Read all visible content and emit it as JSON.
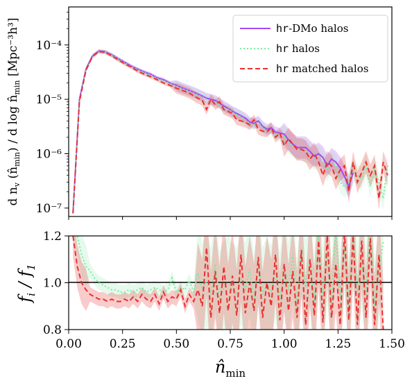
{
  "chart_data": [
    {
      "type": "line",
      "panel": "top",
      "ylabel": "d n_v (n̂_min) / d log n̂_min  [Mpc⁻³h³]",
      "xlabel": "",
      "yscale": "log",
      "ylim": [
        7e-08,
        0.0005
      ],
      "xlim": [
        0.0,
        1.5
      ],
      "yticks": [
        1e-07,
        1e-06,
        1e-05,
        0.0001
      ],
      "ytick_labels": [
        "10⁻⁷",
        "10⁻⁶",
        "10⁻⁵",
        "10⁻⁴"
      ],
      "legend": {
        "placement": "top-right",
        "entries": [
          "hr-DMo halos",
          "hr halos",
          "hr matched halos"
        ]
      },
      "x": [
        0.02,
        0.05,
        0.08,
        0.11,
        0.14,
        0.17,
        0.2,
        0.23,
        0.26,
        0.29,
        0.32,
        0.35,
        0.38,
        0.41,
        0.44,
        0.47,
        0.5,
        0.53,
        0.56,
        0.59,
        0.62,
        0.64,
        0.66,
        0.68,
        0.7,
        0.72,
        0.74,
        0.76,
        0.78,
        0.8,
        0.82,
        0.84,
        0.86,
        0.88,
        0.9,
        0.92,
        0.94,
        0.96,
        0.98,
        1.0,
        1.02,
        1.04,
        1.06,
        1.08,
        1.1,
        1.12,
        1.14,
        1.16,
        1.18,
        1.2,
        1.22,
        1.24,
        1.26,
        1.28,
        1.3,
        1.32,
        1.34,
        1.36,
        1.38,
        1.4,
        1.42,
        1.44,
        1.46,
        1.48
      ],
      "series": [
        {
          "name": "hr-DMo halos",
          "color": "#a349f5",
          "style": "solid",
          "values": [
            8e-08,
            1e-05,
            3.6e-05,
            6.3e-05,
            7.7e-05,
            7.5e-05,
            6.6e-05,
            5.6e-05,
            4.8e-05,
            4.1e-05,
            3.6e-05,
            3.2e-05,
            2.9e-05,
            2.5e-05,
            2.3e-05,
            2e-05,
            1.8e-05,
            1.6e-05,
            1.45e-05,
            1.3e-05,
            1.15e-05,
            1.05e-05,
            1e-05,
            9.5e-06,
            8.5e-06,
            7.5e-06,
            6.8e-06,
            6e-06,
            5.5e-06,
            5e-06,
            4.5e-06,
            3.8e-06,
            3.6e-06,
            4e-06,
            3.2e-06,
            2.8e-06,
            3e-06,
            2.5e-06,
            2.4e-06,
            2.3e-06,
            1.8e-06,
            1.5e-06,
            1.3e-06,
            1.3e-06,
            1.3e-06,
            1.1e-06,
            9e-07,
            1e-06,
            8.5e-07,
            6e-07,
            8e-07,
            7e-07,
            5.5e-07,
            3.8e-07,
            2.5e-07,
            4.5e-07,
            null,
            null,
            null,
            null,
            null,
            null,
            null,
            null
          ]
        },
        {
          "name": "hr halos",
          "color": "#7ee8a2",
          "style": "dotted",
          "values": [
            8e-08,
            9.5e-06,
            3.4e-05,
            6.2e-05,
            7.5e-05,
            7.4e-05,
            6.5e-05,
            5.5e-05,
            4.7e-05,
            4e-05,
            3.5e-05,
            3.1e-05,
            2.8e-05,
            2.4e-05,
            2.2e-05,
            1.95e-05,
            1.75e-05,
            1.55e-05,
            1.4e-05,
            1.25e-05,
            1.1e-05,
            1e-05,
            9.5e-06,
            9e-06,
            8e-06,
            7e-06,
            6.5e-06,
            5.8e-06,
            5.2e-06,
            4.8e-06,
            4.2e-06,
            3.6e-06,
            3.4e-06,
            3.8e-06,
            3e-06,
            2.6e-06,
            2.8e-06,
            2.2e-06,
            2.2e-06,
            2.1e-06,
            1.6e-06,
            1.4e-06,
            1.2e-06,
            1.2e-06,
            1.1e-06,
            1e-06,
            8e-07,
            9e-07,
            7e-07,
            5e-07,
            7e-07,
            6e-07,
            3e-07,
            2.5e-07,
            3e-07,
            5e-07,
            4e-07,
            3.5e-07,
            6e-07,
            2.5e-07,
            5e-07,
            3e-07,
            1.5e-07,
            6e-07
          ]
        },
        {
          "name": "hr matched halos",
          "color": "#e8312f",
          "style": "dashed",
          "values": [
            8e-08,
            9e-06,
            3.4e-05,
            6.1e-05,
            7.6e-05,
            7.3e-05,
            6.3e-05,
            5.3e-05,
            4.5e-05,
            3.9e-05,
            3.3e-05,
            2.9e-05,
            2.6e-05,
            2.3e-05,
            2e-05,
            1.8e-05,
            1.6e-05,
            1.45e-05,
            1.3e-05,
            1.1e-05,
            9.5e-06,
            6.5e-06,
            1e-05,
            8e-06,
            9e-06,
            6.5e-06,
            6e-06,
            5.5e-06,
            4.2e-06,
            4e-06,
            3.8e-06,
            3.4e-06,
            4.2e-06,
            2.8e-06,
            2.6e-06,
            2.5e-06,
            3e-06,
            2e-06,
            2.4e-06,
            1.4e-06,
            1.9e-06,
            1.5e-06,
            1.2e-06,
            1.2e-06,
            1.1e-06,
            8e-07,
            1e-06,
            7e-07,
            4e-07,
            7e-07,
            6e-07,
            3.5e-07,
            5e-07,
            6e-07,
            2e-07,
            7e-07,
            3e-07,
            4.5e-07,
            7e-07,
            4e-07,
            6e-07,
            1.5e-07,
            7e-07,
            4e-07
          ]
        }
      ]
    },
    {
      "type": "line",
      "panel": "bottom",
      "ylabel": "f_i / f_1",
      "xlabel": "n̂_min",
      "ylim": [
        0.8,
        1.2
      ],
      "xlim": [
        0.0,
        1.5
      ],
      "yticks": [
        0.8,
        1.0,
        1.2
      ],
      "ytick_labels": [
        "0.8",
        "1.0",
        "1.2"
      ],
      "xticks": [
        0.0,
        0.25,
        0.5,
        0.75,
        1.0,
        1.25,
        1.5
      ],
      "xtick_labels": [
        "0.00",
        "0.25",
        "0.50",
        "0.75",
        "1.00",
        "1.25",
        "1.50"
      ],
      "reference_line": 1.0,
      "x": [
        0.02,
        0.04,
        0.06,
        0.08,
        0.1,
        0.12,
        0.14,
        0.16,
        0.18,
        0.2,
        0.22,
        0.24,
        0.26,
        0.28,
        0.3,
        0.32,
        0.34,
        0.36,
        0.38,
        0.4,
        0.42,
        0.44,
        0.46,
        0.48,
        0.5,
        0.52,
        0.54,
        0.56,
        0.58,
        0.6,
        0.62,
        0.64,
        0.66,
        0.68,
        0.7,
        0.72,
        0.74,
        0.76,
        0.78,
        0.8,
        0.82,
        0.84,
        0.86,
        0.88,
        0.9,
        0.92,
        0.94,
        0.96,
        0.98,
        1.0,
        1.02,
        1.04,
        1.06,
        1.08,
        1.1,
        1.12,
        1.14,
        1.16,
        1.18,
        1.2,
        1.22,
        1.24,
        1.26,
        1.28,
        1.3,
        1.32,
        1.34,
        1.36,
        1.38,
        1.4,
        1.42,
        1.44,
        1.46
      ],
      "series": [
        {
          "name": "hr halos",
          "color": "#7ee8a2",
          "style": "dotted",
          "values": [
            1.3,
            1.2,
            1.12,
            1.07,
            1.05,
            1.02,
            1.0,
            0.99,
            0.98,
            0.97,
            0.97,
            0.96,
            0.96,
            0.97,
            0.96,
            0.97,
            0.98,
            0.96,
            0.97,
            0.98,
            0.97,
            0.96,
            0.97,
            1.02,
            0.96,
            0.98,
            0.97,
            1.01,
            0.96,
            1.04,
            0.97,
            1.01,
            0.95,
            1.08,
            0.93,
            0.98,
            1.0,
            0.97,
            0.95,
            1.02,
            0.97,
            1.06,
            0.92,
            1.1,
            0.95,
            1.0,
            0.96,
            1.05,
            0.93,
            1.08,
            0.97,
            1.12,
            0.9,
            1.15,
            0.98,
            1.1,
            0.92,
            1.2,
            0.95,
            1.12,
            0.9,
            1.25,
            0.93,
            1.16,
            0.9,
            1.2,
            0.96,
            1.1,
            0.95,
            1.3,
            0.9,
            1.05,
            1.18
          ]
        },
        {
          "name": "hr matched halos",
          "color": "#e8312f",
          "style": "dashed",
          "values": [
            1.2,
            1.07,
            1.0,
            0.97,
            0.95,
            0.94,
            0.93,
            0.93,
            0.92,
            0.93,
            0.92,
            0.92,
            0.93,
            0.92,
            0.94,
            0.92,
            0.95,
            0.93,
            0.92,
            0.95,
            0.91,
            0.96,
            0.92,
            0.94,
            0.93,
            0.97,
            0.9,
            0.95,
            0.92,
            0.97,
            0.9,
            1.15,
            0.85,
            1.05,
            0.87,
            1.07,
            0.88,
            1.03,
            0.86,
            1.12,
            0.87,
            1.0,
            0.88,
            1.11,
            0.85,
            1.0,
            0.9,
            1.12,
            0.84,
            1.08,
            0.88,
            1.05,
            0.85,
            1.14,
            0.82,
            1.1,
            0.86,
            1.18,
            0.83,
            1.2,
            0.85,
            1.08,
            0.82,
            1.22,
            0.84,
            1.2,
            0.82,
            1.18,
            0.85,
            1.19,
            0.82,
            1.12,
            0.8
          ]
        }
      ]
    }
  ],
  "labels": {
    "top_ylabel_a": "d n",
    "top_ylabel_sub": "v",
    "top_ylabel_b": " (n̂",
    "top_ylabel_sub2": "min",
    "top_ylabel_c": ") / d log n̂",
    "top_ylabel_sub3": "min",
    "top_ylabel_unit": "  [Mpc⁻³h³]",
    "bottom_ylabel_f": "f",
    "bottom_ylabel_i": "i",
    "bottom_ylabel_slash": " / f",
    "bottom_ylabel_1": "1",
    "xlabel_main": "n̂",
    "xlabel_sub": "min",
    "legend_1_mono": "hr",
    "legend_1_rest": "-DMo halos",
    "legend_2_mono": "hr",
    "legend_2_rest": " halos",
    "legend_3_mono": "hr",
    "legend_3_rest": " matched halos"
  }
}
